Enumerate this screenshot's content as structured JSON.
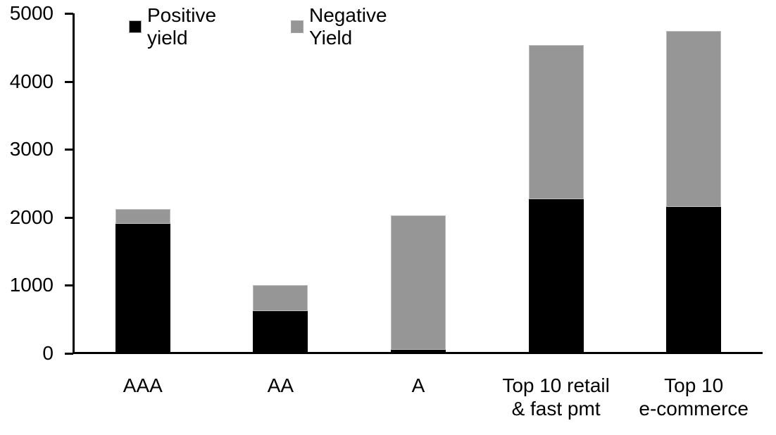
{
  "chart_data": {
    "type": "bar",
    "stacked": true,
    "title": "",
    "xlabel": "",
    "ylabel": "",
    "categories": [
      "AAA",
      "AA",
      "A",
      "Top 10 retail\n& fast pmt",
      "Top 10\ne-commerce"
    ],
    "series": [
      {
        "name": "Positive yield",
        "color": "#000000",
        "values": [
          1900,
          620,
          50,
          2270,
          2150
        ]
      },
      {
        "name": "Negative Yield",
        "color": "#969696",
        "values": [
          220,
          380,
          1980,
          2270,
          2590
        ]
      }
    ],
    "totals": [
      2120,
      1000,
      2030,
      4540,
      4740
    ],
    "ylim": [
      0,
      5000
    ],
    "yticks": [
      0,
      1000,
      2000,
      3000,
      4000,
      5000
    ],
    "grid": false,
    "legend_position": "top"
  },
  "colors": {
    "background": "#ffffff",
    "axis": "#000000",
    "positive_series": "#000000",
    "negative_series": "#969696",
    "bar_border": "#bdbdbd"
  }
}
